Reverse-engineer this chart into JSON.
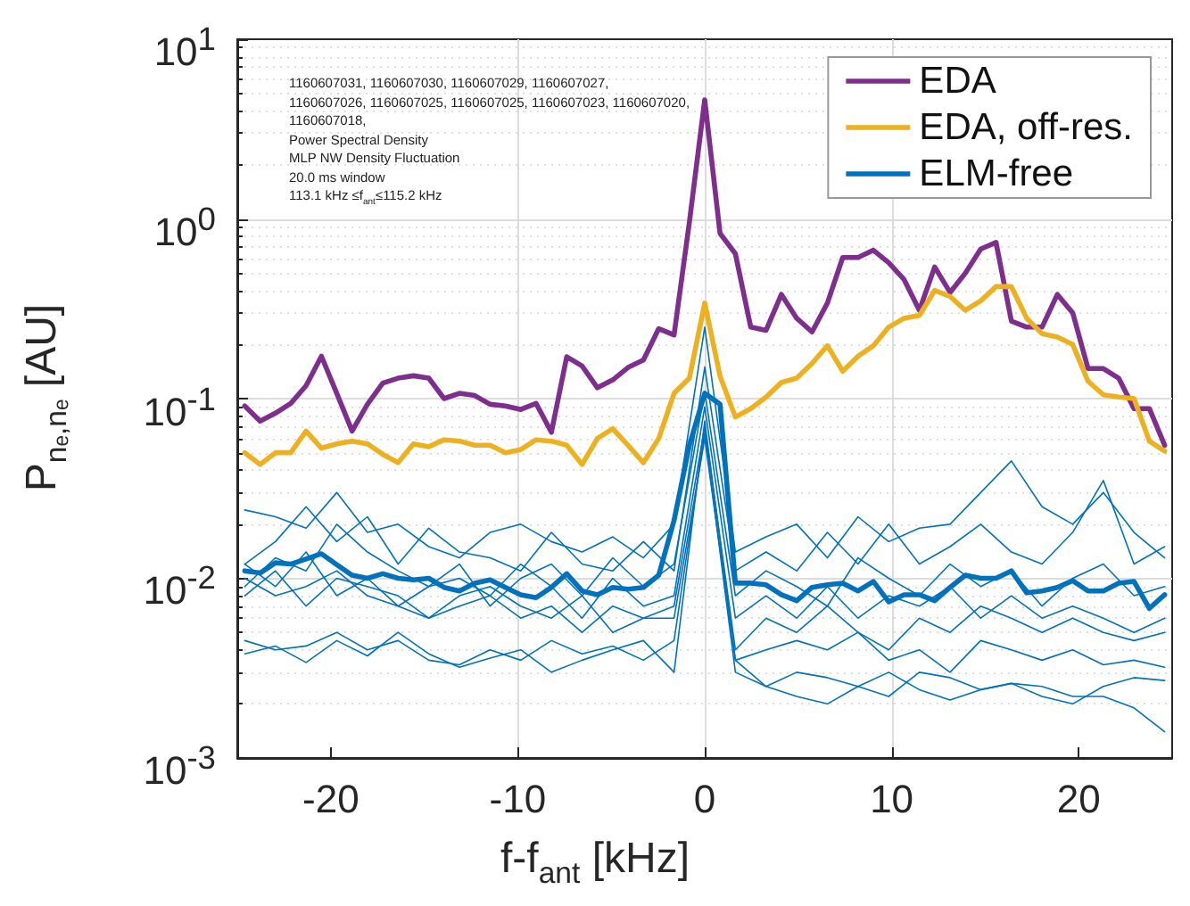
{
  "chart_data": {
    "type": "line",
    "xlabel": "f-f$_{ant}$ [kHz]",
    "ylabel": "P$_{nₑ,nₑ}$ [AU]",
    "annotations": [
      "1160607031, 1160607030, 1160607029, 1160607027,",
      "1160607026, 1160607025, 1160607025, 1160607023, 1160607020,",
      "1160607018,",
      "Power Spectral Density",
      "MLP NW Density Fluctuation",
      "20.0 ms window",
      "113.1 kHz  ≤f$_{ant}$≤115.2 kHz"
    ],
    "log": "y",
    "grid": true,
    "legend": "top right",
    "line_style": "solid",
    "marker": "none",
    "xlim": [
      -25,
      25
    ],
    "xticks": [
      -20,
      -10,
      0,
      10,
      20
    ],
    "ylim": [
      0.001,
      10
    ],
    "yticks": [
      {
        "value": 0.001,
        "label": "10$^{-3}$"
      },
      {
        "value": 0.01,
        "label": "10$^{-2}$"
      },
      {
        "value": 0.1,
        "label": "10$^{-1}$"
      },
      {
        "value": 1,
        "label": "10$^{0}$"
      },
      {
        "value": 10,
        "label": "10$^{1}$"
      }
    ],
    "x": [
      -24.6,
      -23.78,
      -22.96,
      -22.14,
      -21.32,
      -20.5,
      -19.68,
      -18.86,
      -18.04,
      -17.22,
      -16.4,
      -15.58,
      -14.76,
      -13.94,
      -13.12,
      -12.3,
      -11.48,
      -10.66,
      -9.84,
      -9.02,
      -8.2,
      -7.38,
      -6.56,
      -5.74,
      -4.92,
      -4.1,
      -3.28,
      -2.46,
      -1.64,
      -0.82,
      0,
      0.82,
      1.64,
      2.46,
      3.28,
      4.1,
      4.92,
      5.74,
      6.56,
      7.38,
      8.2,
      9.02,
      9.84,
      10.66,
      11.48,
      12.3,
      13.12,
      13.94,
      14.76,
      15.58,
      16.4,
      17.22,
      18.04,
      18.86,
      19.68,
      20.5,
      21.32,
      22.14,
      22.96,
      23.78,
      24.6
    ],
    "series": [
      {
        "name": "EDA",
        "color": "#7e2f8e",
        "values": [
          0.091,
          0.075,
          0.083,
          0.094,
          0.118,
          0.172,
          0.107,
          0.066,
          0.093,
          0.122,
          0.13,
          0.134,
          0.13,
          0.1,
          0.107,
          0.104,
          0.093,
          0.091,
          0.087,
          0.094,
          0.065,
          0.171,
          0.152,
          0.115,
          0.127,
          0.149,
          0.164,
          0.245,
          0.226,
          0.96,
          4.6,
          0.83,
          0.64,
          0.25,
          0.24,
          0.38,
          0.28,
          0.235,
          0.34,
          0.61,
          0.61,
          0.67,
          0.57,
          0.46,
          0.31,
          0.54,
          0.39,
          0.5,
          0.68,
          0.74,
          0.27,
          0.25,
          0.25,
          0.38,
          0.3,
          0.147,
          0.147,
          0.13,
          0.088,
          0.088,
          0.055
        ]
      },
      {
        "name": "EDA, off-res.",
        "color": "#edb120",
        "values": [
          0.05,
          0.043,
          0.05,
          0.05,
          0.066,
          0.053,
          0.056,
          0.058,
          0.056,
          0.049,
          0.044,
          0.056,
          0.054,
          0.059,
          0.058,
          0.055,
          0.055,
          0.05,
          0.052,
          0.059,
          0.058,
          0.055,
          0.043,
          0.06,
          0.068,
          0.055,
          0.044,
          0.06,
          0.107,
          0.13,
          0.34,
          0.133,
          0.079,
          0.088,
          0.102,
          0.123,
          0.13,
          0.157,
          0.197,
          0.142,
          0.172,
          0.197,
          0.25,
          0.28,
          0.29,
          0.4,
          0.37,
          0.31,
          0.35,
          0.42,
          0.42,
          0.28,
          0.23,
          0.22,
          0.2,
          0.125,
          0.105,
          0.102,
          0.1,
          0.058,
          0.051
        ]
      },
      {
        "name": "ELM-free",
        "color": "#0072bd",
        "values": [
          0.011,
          0.0107,
          0.0122,
          0.012,
          0.0128,
          0.0137,
          0.0119,
          0.0104,
          0.01,
          0.0106,
          0.01,
          0.0098,
          0.01,
          0.0089,
          0.0085,
          0.0094,
          0.0098,
          0.0089,
          0.0081,
          0.0078,
          0.0089,
          0.0106,
          0.0085,
          0.0081,
          0.0089,
          0.0087,
          0.0089,
          0.0104,
          0.021,
          0.055,
          0.107,
          0.093,
          0.0094,
          0.0094,
          0.0092,
          0.0081,
          0.0075,
          0.0089,
          0.0092,
          0.0094,
          0.0085,
          0.0096,
          0.0074,
          0.0081,
          0.0081,
          0.0075,
          0.0089,
          0.0104,
          0.01,
          0.01,
          0.011,
          0.0083,
          0.0085,
          0.0089,
          0.0097,
          0.0085,
          0.0085,
          0.0094,
          0.0096,
          0.0068,
          0.0081
        ]
      },
      {
        "color": "#0072bd",
        "x": [
          -24.6,
          -22.96,
          -21.32,
          -19.68,
          -18.04,
          -16.4,
          -14.76,
          -13.12,
          -11.48,
          -9.84,
          -8.2,
          -6.56,
          -4.92,
          -3.28,
          -1.64,
          0,
          1.64,
          3.28,
          4.92,
          6.56,
          8.2,
          9.84,
          11.48,
          13.12,
          14.76,
          16.4,
          18.04,
          19.68,
          21.32,
          22.96,
          24.6
        ],
        "values": [
          0.024,
          0.022,
          0.019,
          0.03,
          0.018,
          0.02,
          0.015,
          0.013,
          0.018,
          0.02,
          0.016,
          0.014,
          0.017,
          0.013,
          0.02,
          0.25,
          0.014,
          0.017,
          0.02,
          0.013,
          0.022,
          0.016,
          0.019,
          0.02,
          0.03,
          0.045,
          0.025,
          0.02,
          0.03,
          0.018,
          0.013
        ]
      },
      {
        "color": "#0072bd",
        "x": [
          -24.6,
          -22.96,
          -21.32,
          -19.68,
          -18.04,
          -16.4,
          -14.76,
          -13.12,
          -11.48,
          -9.84,
          -8.2,
          -6.56,
          -4.92,
          -3.28,
          -1.64,
          0,
          1.64,
          3.28,
          4.92,
          6.56,
          8.2,
          9.84,
          11.48,
          13.12,
          14.76,
          16.4,
          18.04,
          19.68,
          21.32,
          22.96,
          24.6
        ],
        "values": [
          0.012,
          0.016,
          0.025,
          0.016,
          0.022,
          0.012,
          0.019,
          0.014,
          0.013,
          0.011,
          0.018,
          0.012,
          0.011,
          0.016,
          0.011,
          0.15,
          0.011,
          0.014,
          0.011,
          0.018,
          0.012,
          0.02,
          0.012,
          0.015,
          0.02,
          0.014,
          0.012,
          0.018,
          0.035,
          0.012,
          0.015
        ]
      },
      {
        "color": "#0072bd",
        "x": [
          -24.6,
          -22.96,
          -21.32,
          -19.68,
          -18.04,
          -16.4,
          -14.76,
          -13.12,
          -11.48,
          -9.84,
          -8.2,
          -6.56,
          -4.92,
          -3.28,
          -1.64,
          0,
          1.64,
          3.28,
          4.92,
          6.56,
          8.2,
          9.84,
          11.48,
          13.12,
          14.76,
          16.4,
          18.04,
          19.68,
          21.32,
          22.96,
          24.6
        ],
        "values": [
          0.009,
          0.013,
          0.011,
          0.02,
          0.014,
          0.011,
          0.009,
          0.012,
          0.007,
          0.01,
          0.012,
          0.008,
          0.013,
          0.009,
          0.012,
          0.11,
          0.008,
          0.011,
          0.009,
          0.007,
          0.013,
          0.01,
          0.008,
          0.012,
          0.009,
          0.011,
          0.007,
          0.01,
          0.012,
          0.008,
          0.009
        ]
      },
      {
        "color": "#0072bd",
        "x": [
          -24.6,
          -22.96,
          -21.32,
          -19.68,
          -18.04,
          -16.4,
          -14.76,
          -13.12,
          -11.48,
          -9.84,
          -8.2,
          -6.56,
          -4.92,
          -3.28,
          -1.64,
          0,
          1.64,
          3.28,
          4.92,
          6.56,
          8.2,
          9.84,
          11.48,
          13.12,
          14.76,
          16.4,
          18.04,
          19.68,
          21.32,
          22.96,
          24.6
        ],
        "values": [
          0.012,
          0.009,
          0.014,
          0.008,
          0.01,
          0.007,
          0.009,
          0.01,
          0.008,
          0.012,
          0.009,
          0.006,
          0.01,
          0.007,
          0.008,
          0.09,
          0.006,
          0.008,
          0.006,
          0.009,
          0.006,
          0.008,
          0.007,
          0.009,
          0.006,
          0.008,
          0.006,
          0.007,
          0.006,
          0.005,
          0.006
        ]
      },
      {
        "color": "#0072bd",
        "x": [
          -24.6,
          -22.96,
          -21.32,
          -19.68,
          -18.04,
          -16.4,
          -14.76,
          -13.12,
          -11.48,
          -9.84,
          -8.2,
          -6.56,
          -4.92,
          -3.28,
          -1.64,
          0,
          1.64,
          3.28,
          4.92,
          6.56,
          8.2,
          9.84,
          11.48,
          13.12,
          14.76,
          16.4,
          18.04,
          19.68,
          21.32,
          22.96,
          24.6
        ],
        "values": [
          0.008,
          0.011,
          0.007,
          0.01,
          0.009,
          0.008,
          0.006,
          0.008,
          0.009,
          0.007,
          0.006,
          0.008,
          0.005,
          0.006,
          0.007,
          0.07,
          0.004,
          0.006,
          0.005,
          0.007,
          0.005,
          0.004,
          0.006,
          0.005,
          0.007,
          0.006,
          0.005,
          0.006,
          0.005,
          0.0045,
          0.005
        ]
      },
      {
        "color": "#0072bd",
        "x": [
          -24.6,
          -22.96,
          -21.32,
          -19.68,
          -18.04,
          -16.4,
          -14.76,
          -13.12,
          -11.48,
          -9.84,
          -8.2,
          -6.56,
          -4.92,
          -3.28,
          -1.64,
          0,
          1.64,
          3.28,
          4.92,
          6.56,
          8.2,
          9.84,
          11.48,
          13.12,
          14.76,
          16.4,
          18.04,
          19.68,
          21.32,
          22.96,
          24.6
        ],
        "values": [
          0.01,
          0.008,
          0.009,
          0.011,
          0.008,
          0.007,
          0.006,
          0.007,
          0.008,
          0.006,
          0.007,
          0.005,
          0.007,
          0.006,
          0.006,
          0.06,
          0.0035,
          0.004,
          0.0045,
          0.004,
          0.005,
          0.0035,
          0.004,
          0.003,
          0.0045,
          0.004,
          0.0035,
          0.004,
          0.0033,
          0.0035,
          0.0032
        ]
      },
      {
        "color": "#0072bd",
        "x": [
          -24.6,
          -22.96,
          -21.32,
          -19.68,
          -18.04,
          -16.4,
          -14.76,
          -13.12,
          -11.48,
          -9.84,
          -8.2,
          -6.56,
          -4.92,
          -3.28,
          -1.64,
          0,
          1.64,
          3.28,
          4.92,
          6.56,
          8.2,
          9.84,
          11.48,
          13.12,
          14.76,
          16.4,
          18.04,
          19.68,
          21.32,
          22.96,
          24.6
        ],
        "values": [
          0.0045,
          0.004,
          0.0042,
          0.005,
          0.004,
          0.0045,
          0.0035,
          0.0033,
          0.004,
          0.0035,
          0.0045,
          0.0038,
          0.0042,
          0.0035,
          0.0045,
          0.065,
          0.003,
          0.0025,
          0.003,
          0.0028,
          0.0025,
          0.0022,
          0.003,
          0.0028,
          0.0024,
          0.0026,
          0.0025,
          0.0022,
          0.0022,
          0.0019,
          0.0014
        ]
      },
      {
        "color": "#0072bd",
        "x": [
          -24.6,
          -22.96,
          -21.32,
          -19.68,
          -18.04,
          -16.4,
          -14.76,
          -13.12,
          -11.48,
          -9.84,
          -8.2,
          -6.56,
          -4.92,
          -3.28,
          -1.64,
          0,
          1.64,
          3.28,
          4.92,
          6.56,
          8.2,
          9.84,
          11.48,
          13.12,
          14.76,
          16.4,
          18.04,
          19.68,
          21.32,
          22.96,
          24.6
        ],
        "values": [
          0.0038,
          0.0042,
          0.0034,
          0.0045,
          0.0037,
          0.005,
          0.0038,
          0.0032,
          0.0036,
          0.004,
          0.003,
          0.0035,
          0.004,
          0.0045,
          0.003,
          0.075,
          0.0035,
          0.0025,
          0.0022,
          0.002,
          0.0025,
          0.003,
          0.0024,
          0.0021,
          0.0024,
          0.0026,
          0.0022,
          0.002,
          0.0025,
          0.0028,
          0.0027
        ]
      }
    ]
  }
}
